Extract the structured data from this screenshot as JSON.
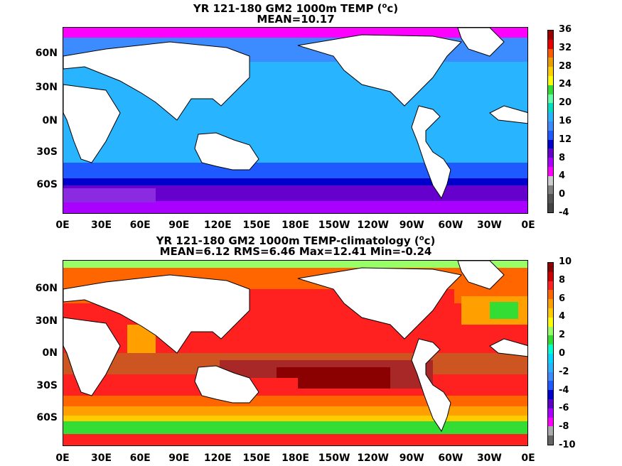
{
  "panel1": {
    "title_line1": "YR 121-180 GM2 1000m TEMP (",
    "title_sup": "o",
    "title_unit": "c)",
    "title_line2": "MEAN=10.17",
    "colorbar_ticks": [
      "36",
      "32",
      "28",
      "24",
      "20",
      "16",
      "12",
      "8",
      "4",
      "0",
      "-4"
    ],
    "colorbar_colors": [
      "#9b0000",
      "#e60000",
      "#ff5a00",
      "#e8a000",
      "#ffcf00",
      "#ffff00",
      "#33dd33",
      "#66ffaa",
      "#00e0c0",
      "#28b4ff",
      "#3c8cff",
      "#1e5aff",
      "#0000cc",
      "#6600cc",
      "#aa00ff",
      "#ff00ff",
      "#cccccc",
      "#808080",
      "#555555",
      "#444444"
    ]
  },
  "panel2": {
    "title_line1": "YR 121-180 GM2 1000m TEMP-climatology (",
    "title_sup": "o",
    "title_unit": "c)",
    "title_line2": "MEAN=6.12   RMS=6.46   Max=12.41   Min=-0.24",
    "colorbar_ticks": [
      "10",
      "8",
      "6",
      "4",
      "2",
      "0",
      "-2",
      "-4",
      "-6",
      "-8",
      "-10"
    ],
    "colorbar_colors": [
      "#8b0000",
      "#cc0000",
      "#ff2020",
      "#ff6600",
      "#ffa000",
      "#ffcc00",
      "#ffff00",
      "#99ff66",
      "#33dd33",
      "#00ffcc",
      "#00d8ff",
      "#28b4ff",
      "#3c8cff",
      "#1e5aff",
      "#0000cc",
      "#5a00c8",
      "#aa00ff",
      "#ff00ff",
      "#aaaaaa",
      "#666666"
    ]
  },
  "axes": {
    "x_ticks": [
      "0E",
      "30E",
      "60E",
      "90E",
      "120E",
      "150E",
      "180E",
      "150W",
      "120W",
      "90W",
      "60W",
      "30W",
      "0E"
    ],
    "y_ticks": [
      "60N",
      "30N",
      "0N",
      "30S",
      "60S"
    ]
  }
}
